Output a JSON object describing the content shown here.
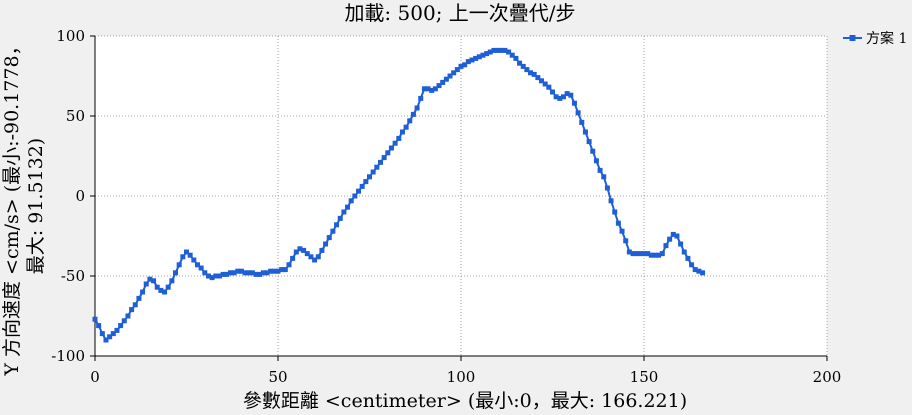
{
  "chart_data": {
    "type": "line",
    "title": "加載: 500; 上一次疊代/步",
    "xlabel": "參數距離 <centimeter> (最小:0，最大: 166.221)",
    "ylabel_line1": "Y 方向速度 <cm/s> (最小:-90.1778，",
    "ylabel_line2": "最大: 91.5132)",
    "xlim": [
      0,
      200
    ],
    "ylim": [
      -100,
      100
    ],
    "x_ticks": [
      0,
      50,
      100,
      150,
      200
    ],
    "y_ticks": [
      100,
      50,
      0,
      -50,
      -100
    ],
    "grid": true,
    "legend_position": "top-right",
    "series": [
      {
        "name": "方案 1",
        "color": "#1f5fd6",
        "marker": "square",
        "x": [
          0,
          1,
          2,
          3,
          4,
          5,
          6,
          7,
          8,
          9,
          10,
          11,
          12,
          13,
          14,
          15,
          16,
          17,
          18,
          19,
          20,
          21,
          22,
          23,
          24,
          25,
          26,
          27,
          28,
          29,
          30,
          31,
          32,
          33,
          34,
          35,
          36,
          37,
          38,
          39,
          40,
          41,
          42,
          43,
          44,
          45,
          46,
          47,
          48,
          49,
          50,
          51,
          52,
          53,
          54,
          55,
          56,
          57,
          58,
          59,
          60,
          61,
          62,
          63,
          64,
          65,
          66,
          67,
          68,
          69,
          70,
          71,
          72,
          73,
          74,
          75,
          76,
          77,
          78,
          79,
          80,
          81,
          82,
          83,
          84,
          85,
          86,
          87,
          88,
          89,
          90,
          91,
          92,
          93,
          94,
          95,
          96,
          97,
          98,
          99,
          100,
          101,
          102,
          103,
          104,
          105,
          106,
          107,
          108,
          109,
          110,
          111,
          112,
          113,
          114,
          115,
          116,
          117,
          118,
          119,
          120,
          121,
          122,
          123,
          124,
          125,
          126,
          127,
          128,
          129,
          130,
          131,
          132,
          133,
          134,
          135,
          136,
          137,
          138,
          139,
          140,
          141,
          142,
          143,
          144,
          145,
          146,
          147,
          148,
          149,
          150,
          151,
          152,
          153,
          154,
          155,
          156,
          157,
          158,
          159,
          160,
          161,
          162,
          163,
          164,
          165,
          166
        ],
        "y": [
          -77,
          -81,
          -86,
          -90,
          -88,
          -86,
          -84,
          -81,
          -78,
          -75,
          -71,
          -68,
          -64,
          -60,
          -55,
          -52,
          -53,
          -57,
          -59,
          -60,
          -57,
          -53,
          -48,
          -43,
          -38,
          -35,
          -37,
          -40,
          -43,
          -45,
          -48,
          -50,
          -51,
          -50,
          -50,
          -49,
          -49,
          -48,
          -48,
          -47,
          -47,
          -48,
          -48,
          -48,
          -49,
          -49,
          -48,
          -48,
          -47,
          -47,
          -47,
          -46,
          -46,
          -43,
          -39,
          -35,
          -33,
          -34,
          -36,
          -38,
          -40,
          -38,
          -34,
          -30,
          -26,
          -22,
          -18,
          -14,
          -10,
          -7,
          -3,
          0,
          3,
          6,
          9,
          12,
          15,
          18,
          21,
          24,
          27,
          30,
          33,
          36,
          40,
          43,
          47,
          51,
          55,
          61,
          67,
          67,
          66,
          67,
          69,
          71,
          73,
          75,
          77,
          79,
          81,
          82,
          84,
          85,
          86,
          87,
          88,
          89,
          90,
          91,
          91,
          91,
          91,
          90,
          88,
          86,
          83,
          81,
          79,
          77,
          76,
          74,
          72,
          70,
          68,
          65,
          62,
          61,
          62,
          64,
          63,
          58,
          52,
          46,
          40,
          34,
          28,
          22,
          16,
          12,
          5,
          -3,
          -10,
          -17,
          -22,
          -28,
          -35,
          -36,
          -36,
          -36,
          -36,
          -36,
          -37,
          -37,
          -37,
          -36,
          -31,
          -27,
          -24,
          -25,
          -30,
          -35,
          -39,
          -43,
          -46,
          -47,
          -48
        ]
      }
    ]
  }
}
